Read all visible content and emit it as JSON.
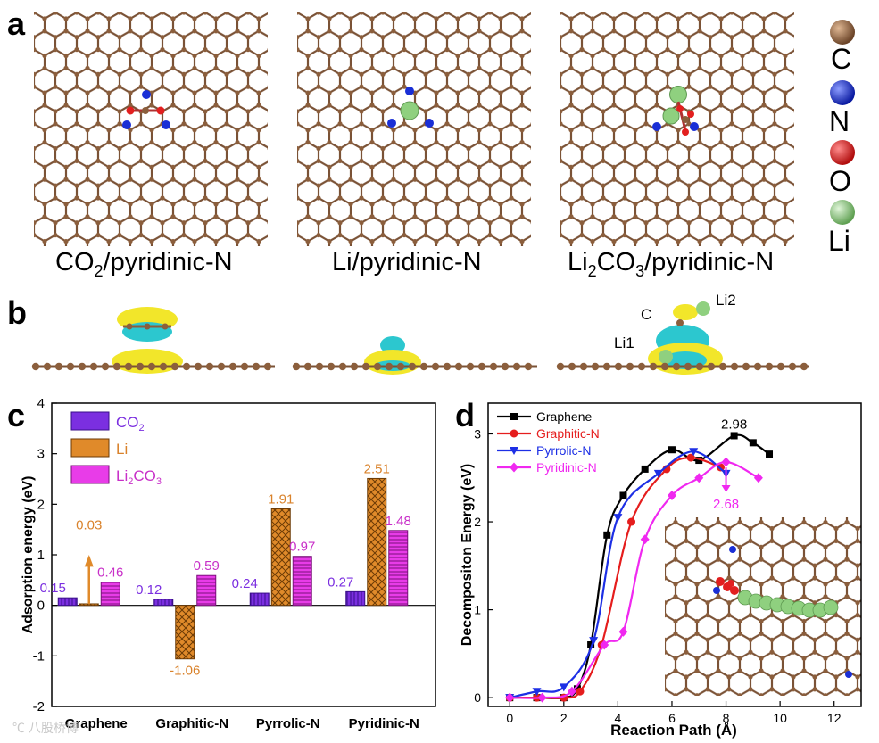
{
  "panel_a": {
    "letter": "a",
    "structures": [
      {
        "pre": "CO",
        "sub": "2",
        "post": "/pyridinic-N"
      },
      {
        "pre": "Li/pyridinic-N",
        "sub": "",
        "post": ""
      },
      {
        "pre": "Li",
        "sub": "2",
        "post": "CO",
        "sub2": "3",
        "post2": "/pyridinic-N"
      }
    ]
  },
  "atom_legend": [
    {
      "label": "C",
      "color": "#8b5e3c"
    },
    {
      "label": "N",
      "color": "#1a2fd6"
    },
    {
      "label": "O",
      "color": "#e21f1f"
    },
    {
      "label": "Li",
      "color": "#8fd07f"
    }
  ],
  "panel_b": {
    "letter": "b",
    "labels": {
      "c": "C",
      "li1": "Li1",
      "li2": "Li2"
    },
    "colors": {
      "iso_yellow": "#f2e62a",
      "iso_cyan": "#2cc7cf",
      "carbon": "#8b5e3c"
    }
  },
  "panel_c": {
    "letter": "c",
    "chart_data": {
      "type": "bar",
      "categories": [
        "Graphene",
        "Graphitic-N",
        "Pyrrolic-N",
        "Pyridinic-N"
      ],
      "series": [
        {
          "name": "CO2",
          "legend_pre": "CO",
          "legend_sub": "2",
          "values": [
            0.15,
            0.12,
            0.24,
            0.27
          ],
          "labels": [
            "0.15",
            "0.12",
            "0.24",
            "0.27"
          ],
          "color": "#7b2fe0",
          "label_color": "#7b2fe0"
        },
        {
          "name": "Li",
          "legend_pre": "Li",
          "legend_sub": "",
          "values": [
            0.03,
            -1.06,
            1.91,
            2.51
          ],
          "labels": [
            "0.03",
            "-1.06",
            "1.91",
            "2.51"
          ],
          "color": "#e08a2a",
          "label_color": "#d9822b"
        },
        {
          "name": "Li2CO3",
          "legend_pre": "Li",
          "legend_sub": "2",
          "legend_post": "CO",
          "legend_sub2": "3",
          "values": [
            0.46,
            0.59,
            0.97,
            1.48
          ],
          "labels": [
            "0.46",
            "0.59",
            "0.97",
            "1.48"
          ],
          "color": "#e83ce8",
          "label_color": "#c82fc8"
        }
      ],
      "ylabel": "Adsorption energy (eV)",
      "ylim": [
        -2,
        4
      ],
      "yticks": [
        "-2",
        "-1",
        "0",
        "1",
        "2",
        "3",
        "4"
      ],
      "ytick_values": [
        -2,
        -1,
        0,
        1,
        2,
        3,
        4
      ]
    }
  },
  "panel_d": {
    "letter": "d",
    "chart_data": {
      "type": "line",
      "xlabel": "Reaction Path (Å)",
      "ylabel": "Decompositon Energy (eV)",
      "xlim": [
        -0.8,
        13
      ],
      "ylim": [
        -0.1,
        3.35
      ],
      "xticks": [
        "0",
        "2",
        "4",
        "6",
        "8",
        "10",
        "12"
      ],
      "xtick_values": [
        0,
        2,
        4,
        6,
        8,
        10,
        12
      ],
      "yticks": [
        "0",
        "1",
        "2",
        "3"
      ],
      "ytick_values": [
        0,
        1,
        2,
        3
      ],
      "series": [
        {
          "name": "Graphene",
          "color": "#000000",
          "marker": "square",
          "x": [
            0,
            1,
            2,
            2.5,
            3,
            3.6,
            4.2,
            5,
            6,
            7,
            8.3,
            9,
            9.6
          ],
          "y": [
            0,
            0,
            0,
            0.1,
            0.6,
            1.85,
            2.3,
            2.6,
            2.82,
            2.7,
            2.98,
            2.9,
            2.77
          ]
        },
        {
          "name": "Graphitic-N",
          "color": "#e51d1d",
          "marker": "circle",
          "x": [
            0,
            1,
            2,
            2.6,
            3.4,
            4.5,
            5.8,
            6.7,
            7.8
          ],
          "y": [
            0,
            0,
            0,
            0.07,
            0.6,
            2.0,
            2.6,
            2.73,
            2.62
          ]
        },
        {
          "name": "Pyrrolic-N",
          "color": "#1d2fe5",
          "marker": "triangle-down",
          "x": [
            0,
            1,
            2,
            3.1,
            4,
            5.5,
            6.8,
            8
          ],
          "y": [
            0,
            0.07,
            0.12,
            0.65,
            2.05,
            2.55,
            2.8,
            2.55
          ]
        },
        {
          "name": "Pyridinic-N",
          "color": "#f028f0",
          "marker": "diamond",
          "x": [
            0,
            1.2,
            2.3,
            3.5,
            4.2,
            5,
            6,
            7,
            8,
            9.2
          ],
          "y": [
            0,
            0,
            0.07,
            0.6,
            0.75,
            1.8,
            2.3,
            2.5,
            2.68,
            2.5
          ]
        }
      ],
      "annotations": {
        "peak_high": "2.98",
        "peak_low": "2.68"
      }
    }
  },
  "watermark": "℃ 八股桥博"
}
